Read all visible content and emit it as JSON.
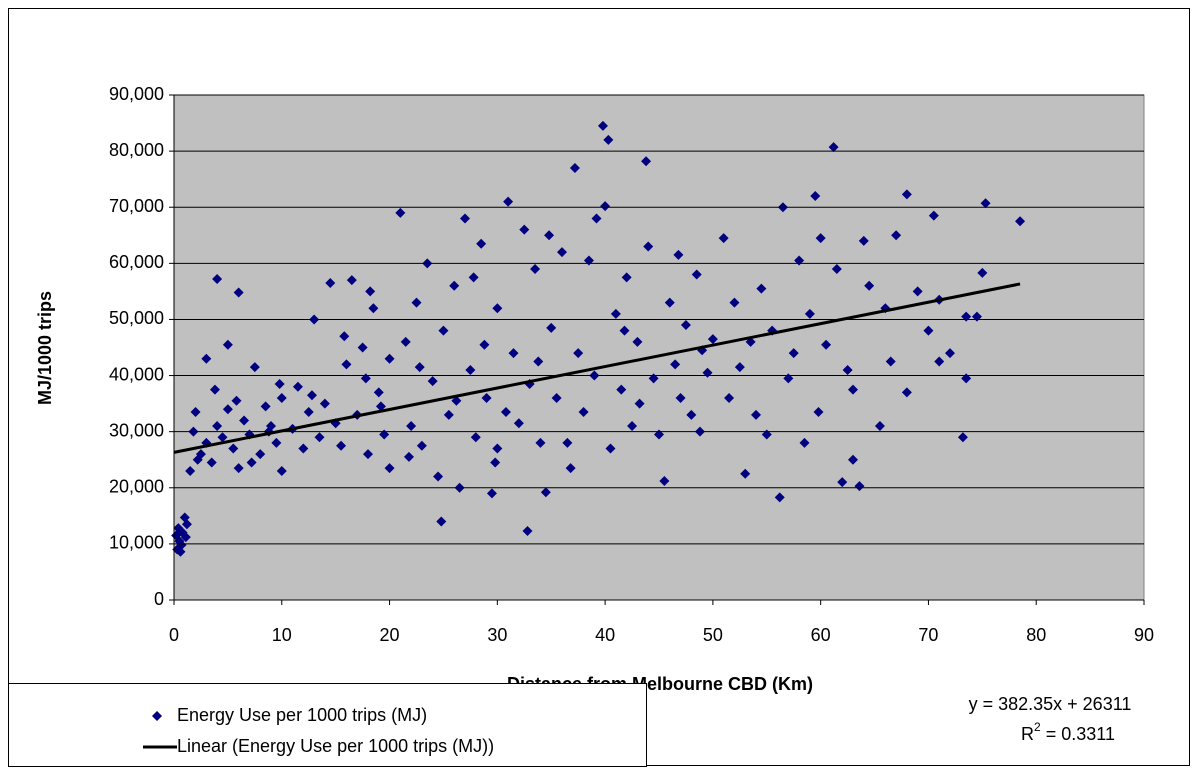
{
  "chart_data": {
    "type": "scatter",
    "x_label": "Distance from Melbourne CBD (Km)",
    "y_label": "MJ/1000 trips",
    "xlim": [
      0,
      90
    ],
    "ylim": [
      0,
      90000
    ],
    "xticks": [
      0,
      10,
      20,
      30,
      40,
      50,
      60,
      70,
      80,
      90
    ],
    "yticks": [
      0,
      {
        "value": 10000,
        "label": "10,000"
      },
      {
        "value": 20000,
        "label": "20,000"
      },
      {
        "value": 30000,
        "label": "30,000"
      },
      {
        "value": 40000,
        "label": "40,000"
      },
      {
        "value": 50000,
        "label": "50,000"
      },
      {
        "value": 60000,
        "label": "60,000"
      },
      {
        "value": 70000,
        "label": "70,000"
      },
      {
        "value": 80000,
        "label": "80,000"
      },
      {
        "value": 90000,
        "label": "90,000"
      }
    ],
    "grid": "y",
    "plot_background": "#c0c0c0",
    "legend": "bottom-left",
    "series": [
      {
        "name": "Energy Use per 1000 trips (MJ)",
        "color": "#000080",
        "marker": "diamond",
        "x": [
          0.2,
          0.3,
          0.5,
          0.6,
          0.8,
          1.0,
          1.2,
          0.4,
          0.7,
          1.1,
          1.5,
          1.8,
          2,
          2.5,
          3,
          3,
          3.5,
          4,
          4,
          4.5,
          5,
          5,
          5.5,
          6,
          6,
          6.5,
          7,
          7.5,
          8,
          8.5,
          9,
          9.5,
          10,
          10,
          2.2,
          3.8,
          5.8,
          7.2,
          8.8,
          9.8,
          11,
          11.5,
          12,
          12.5,
          13,
          13.5,
          14,
          14.5,
          15,
          15.5,
          16,
          16.5,
          17,
          17.5,
          18,
          18.5,
          19,
          19.5,
          20,
          20,
          12.8,
          15.8,
          17.8,
          19.2,
          18.2,
          21,
          21.5,
          22,
          22.5,
          23,
          23.5,
          24,
          24.5,
          24.8,
          25,
          25.5,
          26,
          26.5,
          27,
          27.5,
          28,
          28.5,
          29,
          29.5,
          30,
          30,
          31,
          31.5,
          32,
          32.5,
          32.8,
          33,
          33.5,
          34,
          34.5,
          35,
          22.8,
          26.2,
          28.8,
          30.8,
          34.8,
          21.8,
          27.8,
          29.8,
          33.8,
          35.5,
          36,
          36.5,
          37.2,
          37.5,
          38,
          38.5,
          39,
          39.8,
          40.3,
          40,
          40.5,
          41,
          41.5,
          42,
          42.5,
          43,
          43.8,
          44,
          44.5,
          45,
          45.5,
          46,
          46.5,
          47,
          47.5,
          48,
          48.5,
          49,
          49.5,
          50,
          36.8,
          39.2,
          41.8,
          43.2,
          46.8,
          48.8,
          51,
          51.5,
          52,
          52.5,
          53,
          53.5,
          54,
          54.5,
          55,
          55.5,
          56.2,
          56.5,
          57,
          58,
          58.5,
          59,
          59.5,
          60,
          60.5,
          61.2,
          61.5,
          62,
          62.5,
          63,
          63.6,
          64,
          64.5,
          65.5,
          66,
          67,
          68,
          68,
          69,
          70,
          70.5,
          71,
          72,
          73.2,
          73.5,
          73.5,
          74.5,
          75,
          75.3,
          78.5,
          57.5,
          59.8,
          63,
          66.5,
          71
        ],
        "values": [
          11500,
          9000,
          10500,
          8600,
          12000,
          14700,
          13500,
          12800,
          9800,
          11200,
          23000,
          30000,
          33500,
          26000,
          28000,
          43000,
          24500,
          31000,
          57200,
          29000,
          34000,
          45500,
          27000,
          54800,
          23500,
          32000,
          29500,
          41500,
          26000,
          34500,
          31000,
          28000,
          36000,
          23000,
          25000,
          37500,
          35500,
          24500,
          30000,
          38500,
          30500,
          38000,
          27000,
          33500,
          50000,
          29000,
          35000,
          56500,
          31500,
          27500,
          42000,
          57000,
          33000,
          45000,
          26000,
          52000,
          37000,
          29500,
          43000,
          23500,
          36500,
          47000,
          39500,
          34500,
          55000,
          69000,
          46000,
          31000,
          53000,
          27500,
          60000,
          39000,
          22000,
          14000,
          48000,
          33000,
          56000,
          20000,
          68000,
          41000,
          29000,
          63500,
          36000,
          19000,
          52000,
          27000,
          71000,
          44000,
          31500,
          66000,
          12300,
          38500,
          59000,
          28000,
          19200,
          48500,
          41500,
          35500,
          45500,
          33500,
          65000,
          25500,
          57500,
          24500,
          42500,
          36000,
          62000,
          28000,
          77000,
          44000,
          33500,
          60500,
          40000,
          84500,
          82000,
          70200,
          27000,
          51000,
          37500,
          57500,
          31000,
          46000,
          78200,
          63000,
          39500,
          29500,
          21200,
          53000,
          42000,
          36000,
          49000,
          33000,
          58000,
          44500,
          40500,
          46500,
          23500,
          68000,
          48000,
          35000,
          61500,
          30000,
          64500,
          36000,
          53000,
          41500,
          22500,
          46000,
          33000,
          55500,
          29500,
          48000,
          18300,
          70000,
          39500,
          60500,
          28000,
          51000,
          72000,
          64500,
          45500,
          80700,
          59000,
          21000,
          41000,
          37500,
          20300,
          64000,
          56000,
          31000,
          52000,
          65000,
          72300,
          37000,
          55000,
          48000,
          68500,
          53500,
          44000,
          29000,
          50500,
          39500,
          50500,
          58300,
          70700,
          67500,
          44000,
          33500,
          25000,
          42500,
          42500
        ]
      }
    ],
    "trendline": {
      "name": "Linear (Energy Use per 1000 trips (MJ))",
      "color": "#000000",
      "x": [
        0,
        78.5
      ],
      "values": [
        26311,
        56326
      ]
    },
    "equation": "y = 382.35x + 26311",
    "r_squared": {
      "symbol": "R",
      "sup": "2",
      "text": " = 0.3311"
    }
  }
}
